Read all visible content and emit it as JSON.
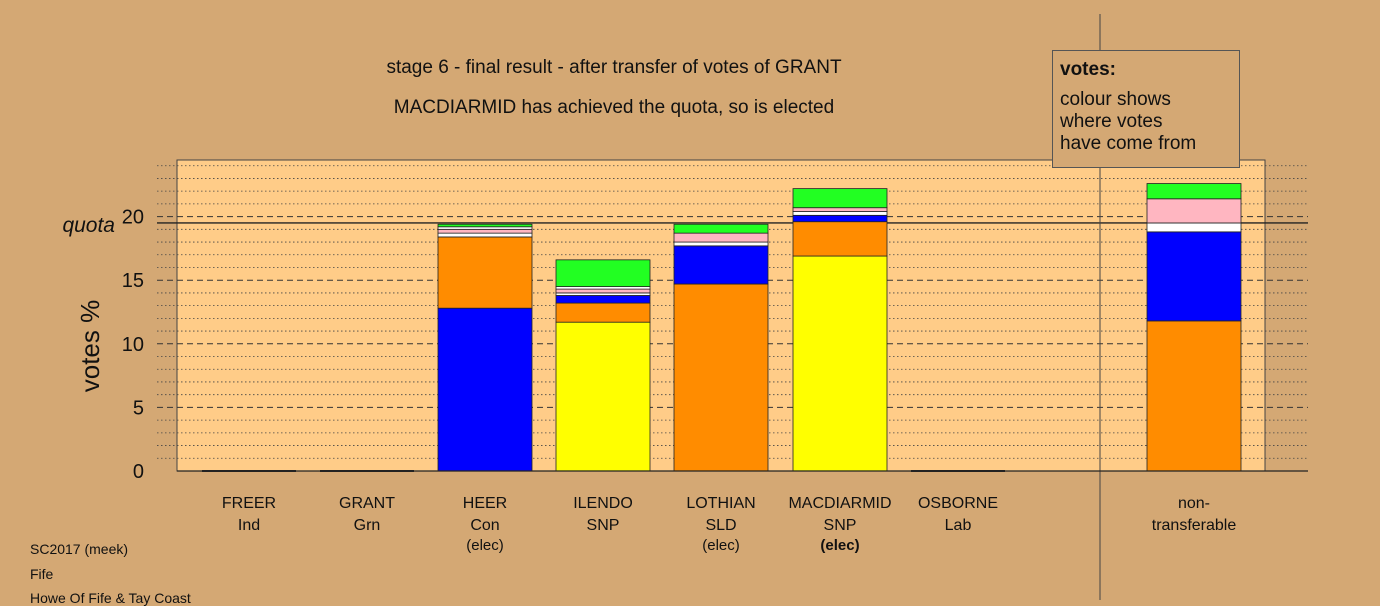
{
  "chart_data": {
    "type": "bar",
    "stacked": true,
    "title": "stage 6 - final result - after transfer of votes of GRANT",
    "subtitle": "MACDIARMID has achieved the quota, so is elected",
    "ylabel": "votes %",
    "ylim": [
      0,
      24
    ],
    "yticks": [
      0,
      5,
      10,
      15,
      20
    ],
    "quota": 19.5,
    "quota_label": "quota",
    "grid": "dotted-minor dashed-major",
    "categories": [
      {
        "name": "FREER",
        "party": "Ind",
        "status": ""
      },
      {
        "name": "GRANT",
        "party": "Grn",
        "status": ""
      },
      {
        "name": "HEER",
        "party": "Con",
        "status": "(elec)"
      },
      {
        "name": "ILENDO",
        "party": "SNP",
        "status": ""
      },
      {
        "name": "LOTHIAN",
        "party": "SLD",
        "status": "(elec)"
      },
      {
        "name": "MACDIARMID",
        "party": "SNP",
        "status": "(elec)",
        "status_bold": true
      },
      {
        "name": "OSBORNE",
        "party": "Lab",
        "status": ""
      }
    ],
    "nontransferable": {
      "label_line1": "non-",
      "label_line2": "transferable"
    },
    "segment_colors": {
      "blue": "#0000ff",
      "orange": "#ff8c00",
      "yellow": "#ffff00",
      "white": "#ffffff",
      "pink": "#ffb6c1",
      "green": "#22ff22"
    },
    "stacks": [
      [],
      [],
      [
        [
          "blue",
          12.8
        ],
        [
          "orange",
          5.6
        ],
        [
          "white",
          0.3
        ],
        [
          "pink",
          0.3
        ],
        [
          "white",
          0.2
        ],
        [
          "green",
          0.2
        ]
      ],
      [
        [
          "yellow",
          11.7
        ],
        [
          "orange",
          1.5
        ],
        [
          "blue",
          0.6
        ],
        [
          "white",
          0.2
        ],
        [
          "pink",
          0.3
        ],
        [
          "white",
          0.2
        ],
        [
          "green",
          2.1
        ]
      ],
      [
        [
          "orange",
          14.7
        ],
        [
          "blue",
          3.0
        ],
        [
          "white",
          0.3
        ],
        [
          "pink",
          0.7
        ],
        [
          "green",
          0.7
        ]
      ],
      [
        [
          "yellow",
          16.9
        ],
        [
          "orange",
          2.7
        ],
        [
          "blue",
          0.5
        ],
        [
          "white",
          0.3
        ],
        [
          "pink",
          0.3
        ],
        [
          "green",
          1.5
        ]
      ],
      []
    ],
    "nontransferable_stack": [
      [
        "orange",
        11.8
      ],
      [
        "blue",
        7.0
      ],
      [
        "white",
        0.7
      ],
      [
        "pink",
        1.9
      ],
      [
        "green",
        1.2
      ]
    ]
  },
  "legend": {
    "title": "votes:",
    "lines": [
      "colour shows",
      "where votes",
      "have come from"
    ]
  },
  "footer": [
    "SC2017 (meek)",
    "Fife",
    "Howe Of Fife & Tay Coast"
  ]
}
